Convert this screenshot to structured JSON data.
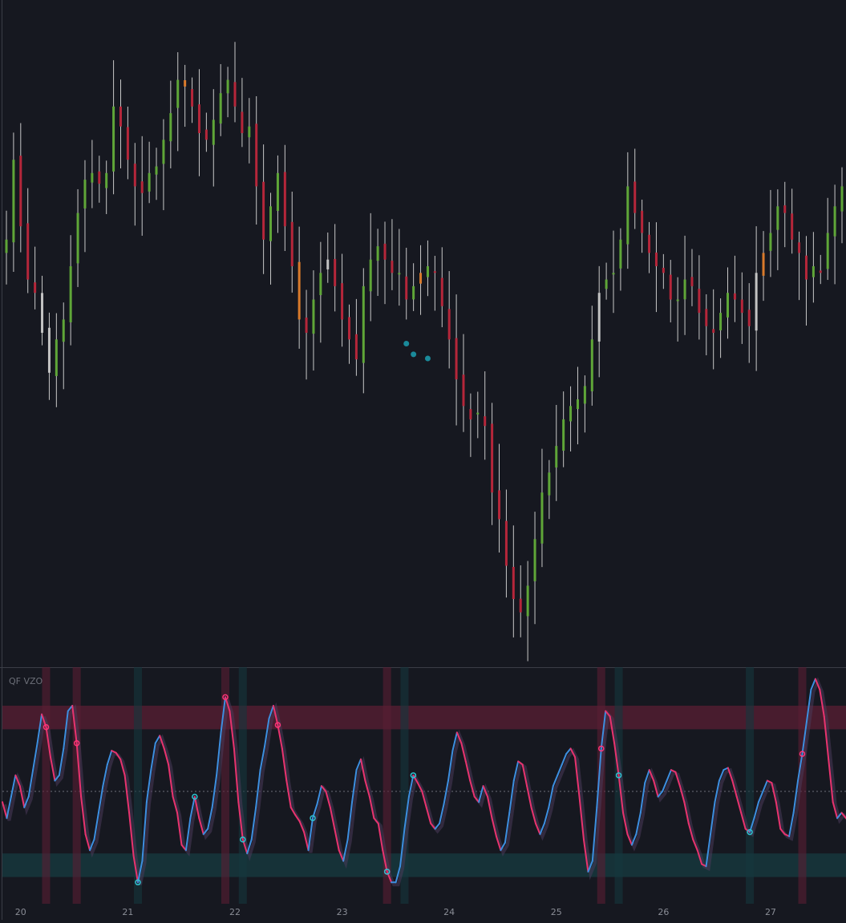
{
  "colors": {
    "background": "#161820",
    "bull": "#5fa638",
    "bear": "#b5263a",
    "neutral": "#c3c3c3",
    "orange": "#d97a2b",
    "signal_dot": "#1a8a9a",
    "osc_up": "#3d8fe0",
    "osc_down": "#e8336e",
    "ob_zone": "#5a1e33",
    "os_zone": "#16373d",
    "peak_marker": "#ff3377",
    "trough_marker": "#2ec2d0",
    "axis_text": "#8a8d96",
    "indicator_label": "#6c6f78"
  },
  "chart_data": [
    {
      "type": "candlestick",
      "title": "",
      "x_ticks": [
        "20",
        "21",
        "22",
        "23",
        "24",
        "25",
        "26",
        "27"
      ],
      "tick_at_bar": [
        2,
        17,
        32,
        47,
        62,
        77,
        92,
        107
      ],
      "bar_count": 118,
      "ohlc_close": [
        420,
        480,
        430,
        390,
        380,
        350,
        320,
        345,
        360,
        400,
        440,
        465,
        470,
        462,
        470,
        520,
        505,
        480,
        460,
        455,
        470,
        475,
        495,
        515,
        540,
        535,
        520,
        500,
        495,
        510,
        530,
        540,
        520,
        500,
        505,
        460,
        420,
        445,
        470,
        430,
        400,
        360,
        350,
        375,
        395,
        405,
        385,
        360,
        345,
        330,
        385,
        405,
        415,
        405,
        395,
        395,
        375,
        385,
        395,
        400,
        395,
        370,
        345,
        315,
        295,
        285,
        290,
        280,
        230,
        210,
        175,
        150,
        140,
        160,
        195,
        230,
        245,
        265,
        285,
        295,
        300,
        310,
        345,
        380,
        390,
        395,
        420,
        460,
        440,
        425,
        410,
        400,
        395,
        375,
        375,
        390,
        385,
        365,
        355,
        350,
        365,
        380,
        375,
        365,
        355,
        395,
        410,
        425,
        445,
        440,
        420,
        410,
        390,
        400,
        395,
        425,
        445,
        460
      ],
      "markers": [
        {
          "bar": 56,
          "kind": "signal-dot"
        },
        {
          "bar": 57,
          "kind": "signal-dot"
        },
        {
          "bar": 59,
          "kind": "signal-dot"
        }
      ]
    },
    {
      "type": "line",
      "title": "QF VZO",
      "series": [
        {
          "values": [
            -10,
            -25,
            -5,
            15,
            5,
            -15,
            -5,
            20,
            45,
            72,
            60,
            32,
            10,
            15,
            40,
            75,
            80,
            45,
            -5,
            -40,
            -55,
            -45,
            -20,
            5,
            25,
            38,
            36,
            30,
            15,
            -20,
            -60,
            -85,
            -65,
            -10,
            20,
            45,
            52,
            40,
            25,
            -5,
            -20,
            -50,
            -55,
            -25,
            -5,
            -25,
            -40,
            -35,
            -15,
            15,
            55,
            88,
            75,
            40,
            -10,
            -45,
            -58,
            -45,
            -15,
            20,
            42,
            68,
            80,
            62,
            40,
            10,
            -15,
            -22,
            -28,
            -38,
            -55,
            -25,
            -12,
            5,
            0,
            -15,
            -35,
            -55,
            -65,
            -45,
            -10,
            20,
            30,
            10,
            -5,
            -25,
            -30,
            -55,
            -75,
            -85,
            -85,
            -70,
            -35,
            -5,
            15,
            8,
            0,
            -15,
            -30,
            -35,
            -30,
            -12,
            10,
            38,
            55,
            45,
            28,
            10,
            -5,
            -10,
            5,
            -5,
            -25,
            -42,
            -55,
            -48,
            -20,
            10,
            28,
            25,
            5,
            -15,
            -30,
            -40,
            -30,
            -15,
            5,
            15,
            25,
            35,
            40,
            32,
            -5,
            -45,
            -75,
            -65,
            -15,
            40,
            75,
            70,
            45,
            15,
            -20,
            -40,
            -50,
            -40,
            -20,
            8,
            20,
            10,
            -5,
            0,
            10,
            20,
            18,
            5,
            -10,
            -30,
            -45,
            -55,
            -68,
            -70,
            -40,
            -10,
            10,
            20,
            22,
            10,
            -5,
            -20,
            -35,
            -38,
            -25,
            -10,
            0,
            10,
            8,
            -10,
            -35,
            -40,
            -42,
            -20,
            10,
            35,
            65,
            95,
            105,
            95,
            70,
            30,
            -10,
            -25,
            -20,
            -25
          ],
          "y_range": [
            -105,
            110
          ]
        }
      ],
      "levels": {
        "overbought_outer": 80,
        "overbought_inner": 58,
        "zero": 0,
        "oversold_inner": -58,
        "oversold_outer": -80
      },
      "peak_markers_idx": [
        10,
        17,
        51,
        63,
        88,
        137,
        183
      ],
      "trough_markers_idx": [
        31,
        44,
        55,
        71,
        88,
        94,
        141,
        171
      ],
      "cross_bands_idx": [
        10,
        17,
        31,
        51,
        55,
        88,
        92,
        137,
        141,
        171,
        183
      ],
      "ylim": [
        -105,
        110
      ]
    }
  ]
}
